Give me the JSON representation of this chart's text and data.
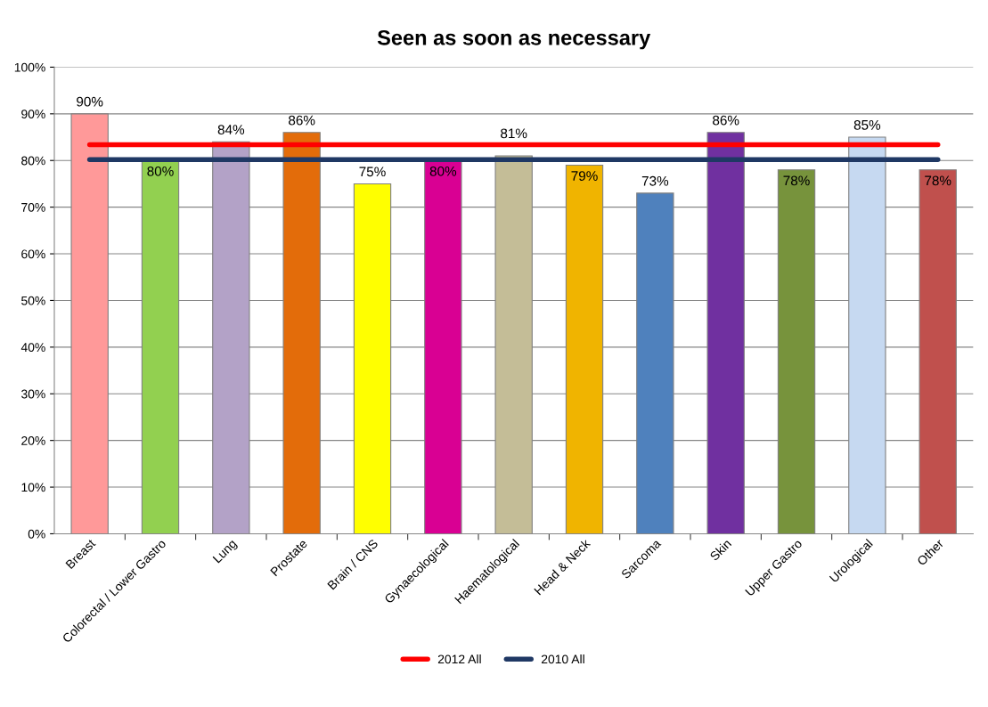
{
  "chart_data": {
    "type": "bar",
    "title": "Seen as soon as necessary",
    "categories": [
      "Breast",
      "Colorectal / Lower Gastro",
      "Lung",
      "Prostate",
      "Brain / CNS",
      "Gynaecological",
      "Haematological",
      "Head & Neck",
      "Sarcoma",
      "Skin",
      "Upper Gastro",
      "Urological",
      "Other"
    ],
    "series": [
      {
        "colors": [
          "#ff9999",
          "#92d050",
          "#b3a2c7",
          "#e36c0a",
          "#ffff00",
          "#d90093",
          "#c4bd97",
          "#f0b400",
          "#4f81bd",
          "#7030a0",
          "#77933c",
          "#c6d9f1",
          "#c0504d"
        ],
        "values": [
          90,
          80,
          84,
          86,
          75,
          80,
          81,
          79,
          73,
          86,
          78,
          85,
          78
        ],
        "value_labels": [
          "90%",
          "80%",
          "84%",
          "86%",
          "75%",
          "80%",
          "81%",
          "79%",
          "73%",
          "86%",
          "78%",
          "85%",
          "78%"
        ]
      },
      {
        "type": "line",
        "name": "2012 All",
        "color": "#ff0000",
        "values": [
          83.4,
          83.4,
          83.4,
          83.4,
          83.4,
          83.4,
          83.4,
          83.4,
          83.4,
          83.4,
          83.4,
          83.4,
          83.4
        ]
      },
      {
        "type": "line",
        "name": "2010 All",
        "color": "#1f3864",
        "values": [
          80.2,
          80.2,
          80.2,
          80.2,
          80.2,
          80.2,
          80.2,
          80.2,
          80.2,
          80.2,
          80.2,
          80.2,
          80.2
        ]
      }
    ],
    "ylim": [
      0,
      100
    ],
    "yticks": [
      {
        "value": 0,
        "label": "0%"
      },
      {
        "value": 10,
        "label": "10%"
      },
      {
        "value": 20,
        "label": "20%"
      },
      {
        "value": 30,
        "label": "30%"
      },
      {
        "value": 40,
        "label": "40%"
      },
      {
        "value": 50,
        "label": "50%"
      },
      {
        "value": 60,
        "label": "60%"
      },
      {
        "value": 70,
        "label": "70%"
      },
      {
        "value": 80,
        "label": "80%"
      },
      {
        "value": 90,
        "label": "90%"
      },
      {
        "value": 100,
        "label": "100%"
      }
    ],
    "grid": "y",
    "legend": "bottom",
    "marker": "none",
    "line_style": "solid"
  }
}
